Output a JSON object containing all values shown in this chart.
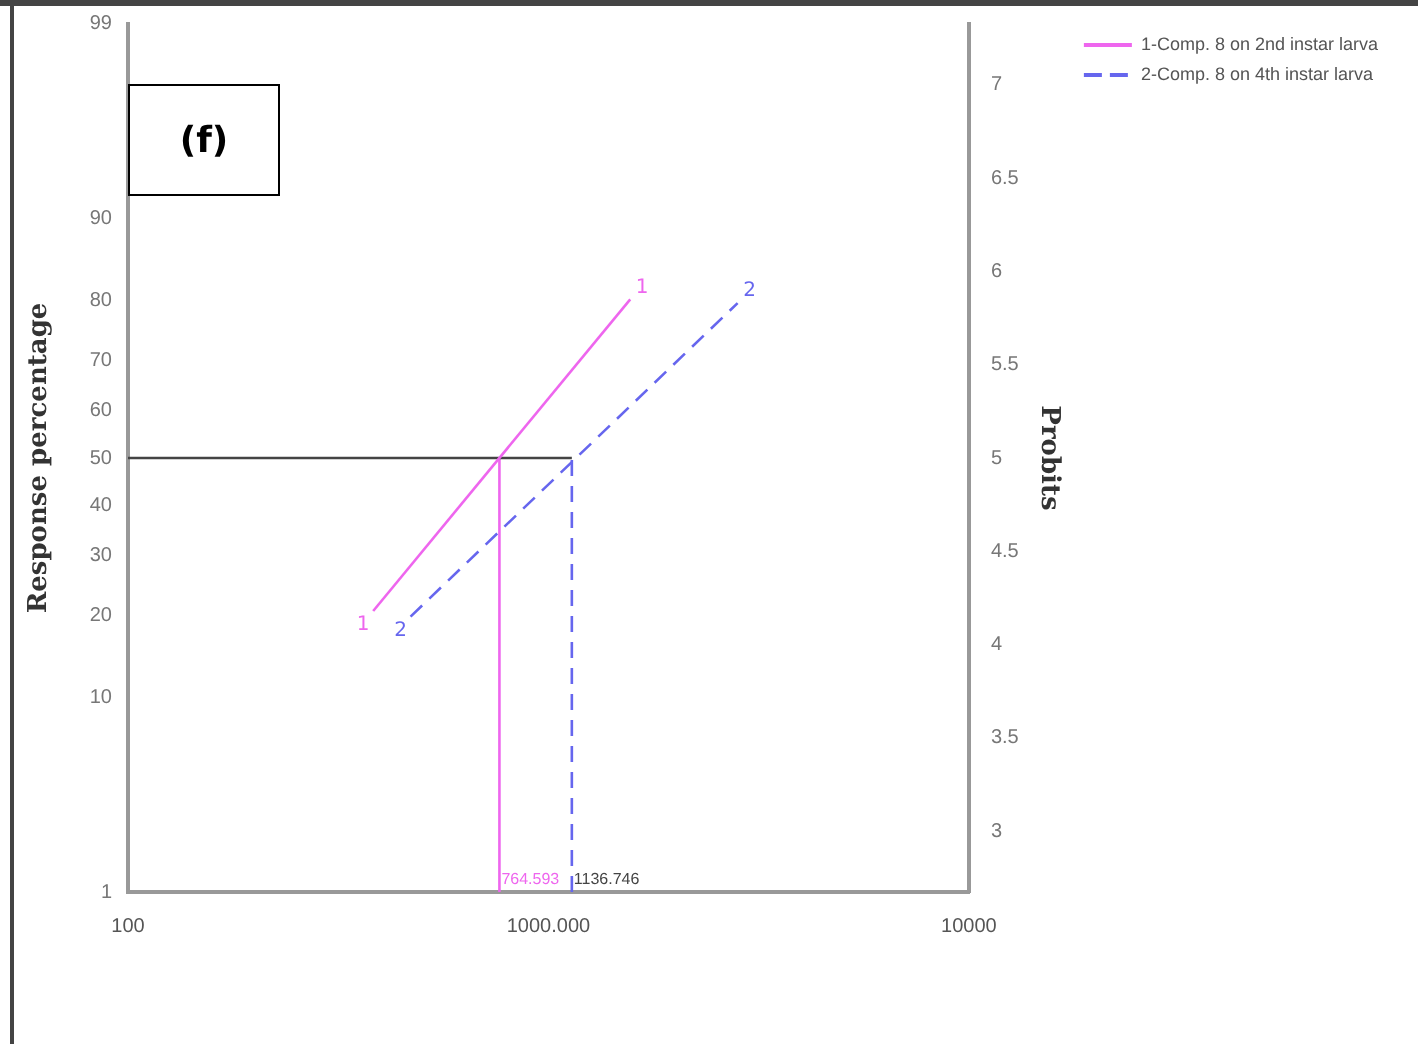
{
  "chart_data": {
    "type": "line",
    "ylabel": "Probits",
    "y2label": "Response percentage",
    "log": "x",
    "xlim": [
      100,
      10000
    ],
    "xticks": [
      100,
      {
        "value": 1000,
        "label": "1000.000"
      },
      10000
    ],
    "ylim": [
      2.674,
      7.326
    ],
    "yticks": [
      3,
      3.5,
      4,
      4.5,
      5,
      5.5,
      6,
      6.5,
      7
    ],
    "grid": false,
    "legend": "top right",
    "marker": "none",
    "series": [
      {
        "name": "1-Comp. 8 on 2nd instar larva",
        "color": "#ee66ee",
        "line_style": "solid",
        "x": [
          383,
          1565
        ],
        "values": [
          4.18,
          5.85
        ]
      },
      {
        "name": "2-Comp. 8 on 4th instar larva",
        "color": "#6666ee",
        "line_style": "dashed",
        "x": [
          470,
          2818
        ],
        "values": [
          4.15,
          5.83
        ]
      },
      {
        "color": "#444444",
        "line_style": "solid",
        "x": [
          100,
          1136.746
        ],
        "values": [
          5,
          5
        ]
      },
      {
        "color": "#ee66ee",
        "line_style": "solid",
        "x": [
          764.593,
          764.593
        ],
        "values": [
          2.674,
          5
        ]
      },
      {
        "color": "#6666ee",
        "line_style": "dashed",
        "x": [
          1136.746,
          1136.746
        ],
        "values": [
          2.674,
          5
        ]
      }
    ],
    "annotations": [
      "(f)",
      "1",
      "10",
      "20",
      "30",
      "40",
      "50",
      "60",
      "70",
      "80",
      "90",
      "99",
      {
        "text": "764.593",
        "x": 764.593,
        "y": 2.674
      },
      {
        "text": "1136.746",
        "x": 1136.746,
        "y": 2.674
      },
      {
        "text": "1",
        "x": 383,
        "y": 4.18
      },
      {
        "text": "1",
        "x": 1565,
        "y": 5.85
      },
      {
        "text": "2",
        "x": 470,
        "y": 4.15
      },
      {
        "text": "2",
        "x": 2818,
        "y": 5.83
      }
    ]
  }
}
